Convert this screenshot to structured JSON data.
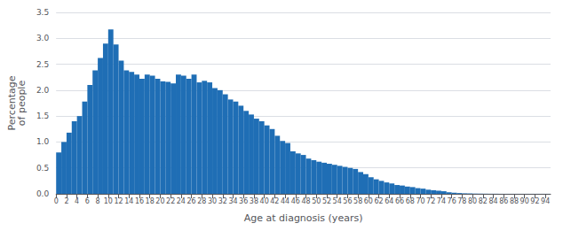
{
  "chart_data": {
    "type": "bar",
    "xlabel": "Age at diagnosis (years)",
    "ylabel": "Percentage\nof people",
    "x": [
      0,
      1,
      2,
      3,
      4,
      5,
      6,
      7,
      8,
      9,
      10,
      11,
      12,
      13,
      14,
      15,
      16,
      17,
      18,
      19,
      20,
      21,
      22,
      23,
      24,
      25,
      26,
      27,
      28,
      29,
      30,
      31,
      32,
      33,
      34,
      35,
      36,
      37,
      38,
      39,
      40,
      41,
      42,
      43,
      44,
      45,
      46,
      47,
      48,
      49,
      50,
      51,
      52,
      53,
      54,
      55,
      56,
      57,
      58,
      59,
      60,
      61,
      62,
      63,
      64,
      65,
      66,
      67,
      68,
      69,
      70,
      71,
      72,
      73,
      74,
      75,
      76,
      77,
      78,
      79,
      80,
      81,
      82,
      83,
      84,
      85,
      86,
      87,
      88,
      89,
      90,
      91,
      92,
      93,
      94
    ],
    "values": [
      0.8,
      1.0,
      1.18,
      1.4,
      1.5,
      1.78,
      2.1,
      2.38,
      2.62,
      2.9,
      3.17,
      2.88,
      2.57,
      2.38,
      2.35,
      2.3,
      2.22,
      2.3,
      2.28,
      2.22,
      2.17,
      2.16,
      2.13,
      2.3,
      2.28,
      2.22,
      2.3,
      2.15,
      2.18,
      2.15,
      2.04,
      2.0,
      1.92,
      1.82,
      1.78,
      1.7,
      1.6,
      1.53,
      1.45,
      1.4,
      1.32,
      1.25,
      1.12,
      1.02,
      0.98,
      0.82,
      0.78,
      0.75,
      0.68,
      0.65,
      0.62,
      0.6,
      0.58,
      0.56,
      0.54,
      0.52,
      0.5,
      0.48,
      0.42,
      0.38,
      0.32,
      0.28,
      0.25,
      0.22,
      0.2,
      0.17,
      0.16,
      0.14,
      0.13,
      0.11,
      0.1,
      0.08,
      0.07,
      0.06,
      0.05,
      0.03,
      0.02,
      0.015,
      0.01,
      0.008,
      0.005,
      0.004,
      0.003,
      0.002,
      0.002,
      0.001,
      0.001,
      0.001,
      0.001,
      0.001,
      0.001,
      0.001,
      0.001,
      0.001,
      0.001
    ],
    "color": "#1F6EB5",
    "xlim": [
      0,
      95
    ],
    "xticks": [
      0,
      2,
      4,
      6,
      8,
      10,
      12,
      14,
      16,
      18,
      20,
      22,
      24,
      26,
      28,
      30,
      32,
      34,
      36,
      38,
      40,
      42,
      44,
      46,
      48,
      50,
      52,
      54,
      56,
      58,
      60,
      62,
      64,
      66,
      68,
      70,
      72,
      74,
      76,
      78,
      80,
      82,
      84,
      86,
      88,
      90,
      92,
      94
    ],
    "ylim": [
      0,
      3.5
    ],
    "yticks": [
      {
        "value": 0.0,
        "label": "0.0"
      },
      {
        "value": 0.5,
        "label": "0.5"
      },
      {
        "value": 1.0,
        "label": "1.0"
      },
      {
        "value": 1.5,
        "label": "1.5"
      },
      {
        "value": 2.0,
        "label": "2.0"
      },
      {
        "value": 2.5,
        "label": "2.5"
      },
      {
        "value": 3.0,
        "label": "3.0"
      },
      {
        "value": 3.5,
        "label": "3.5"
      }
    ],
    "grid": true
  }
}
